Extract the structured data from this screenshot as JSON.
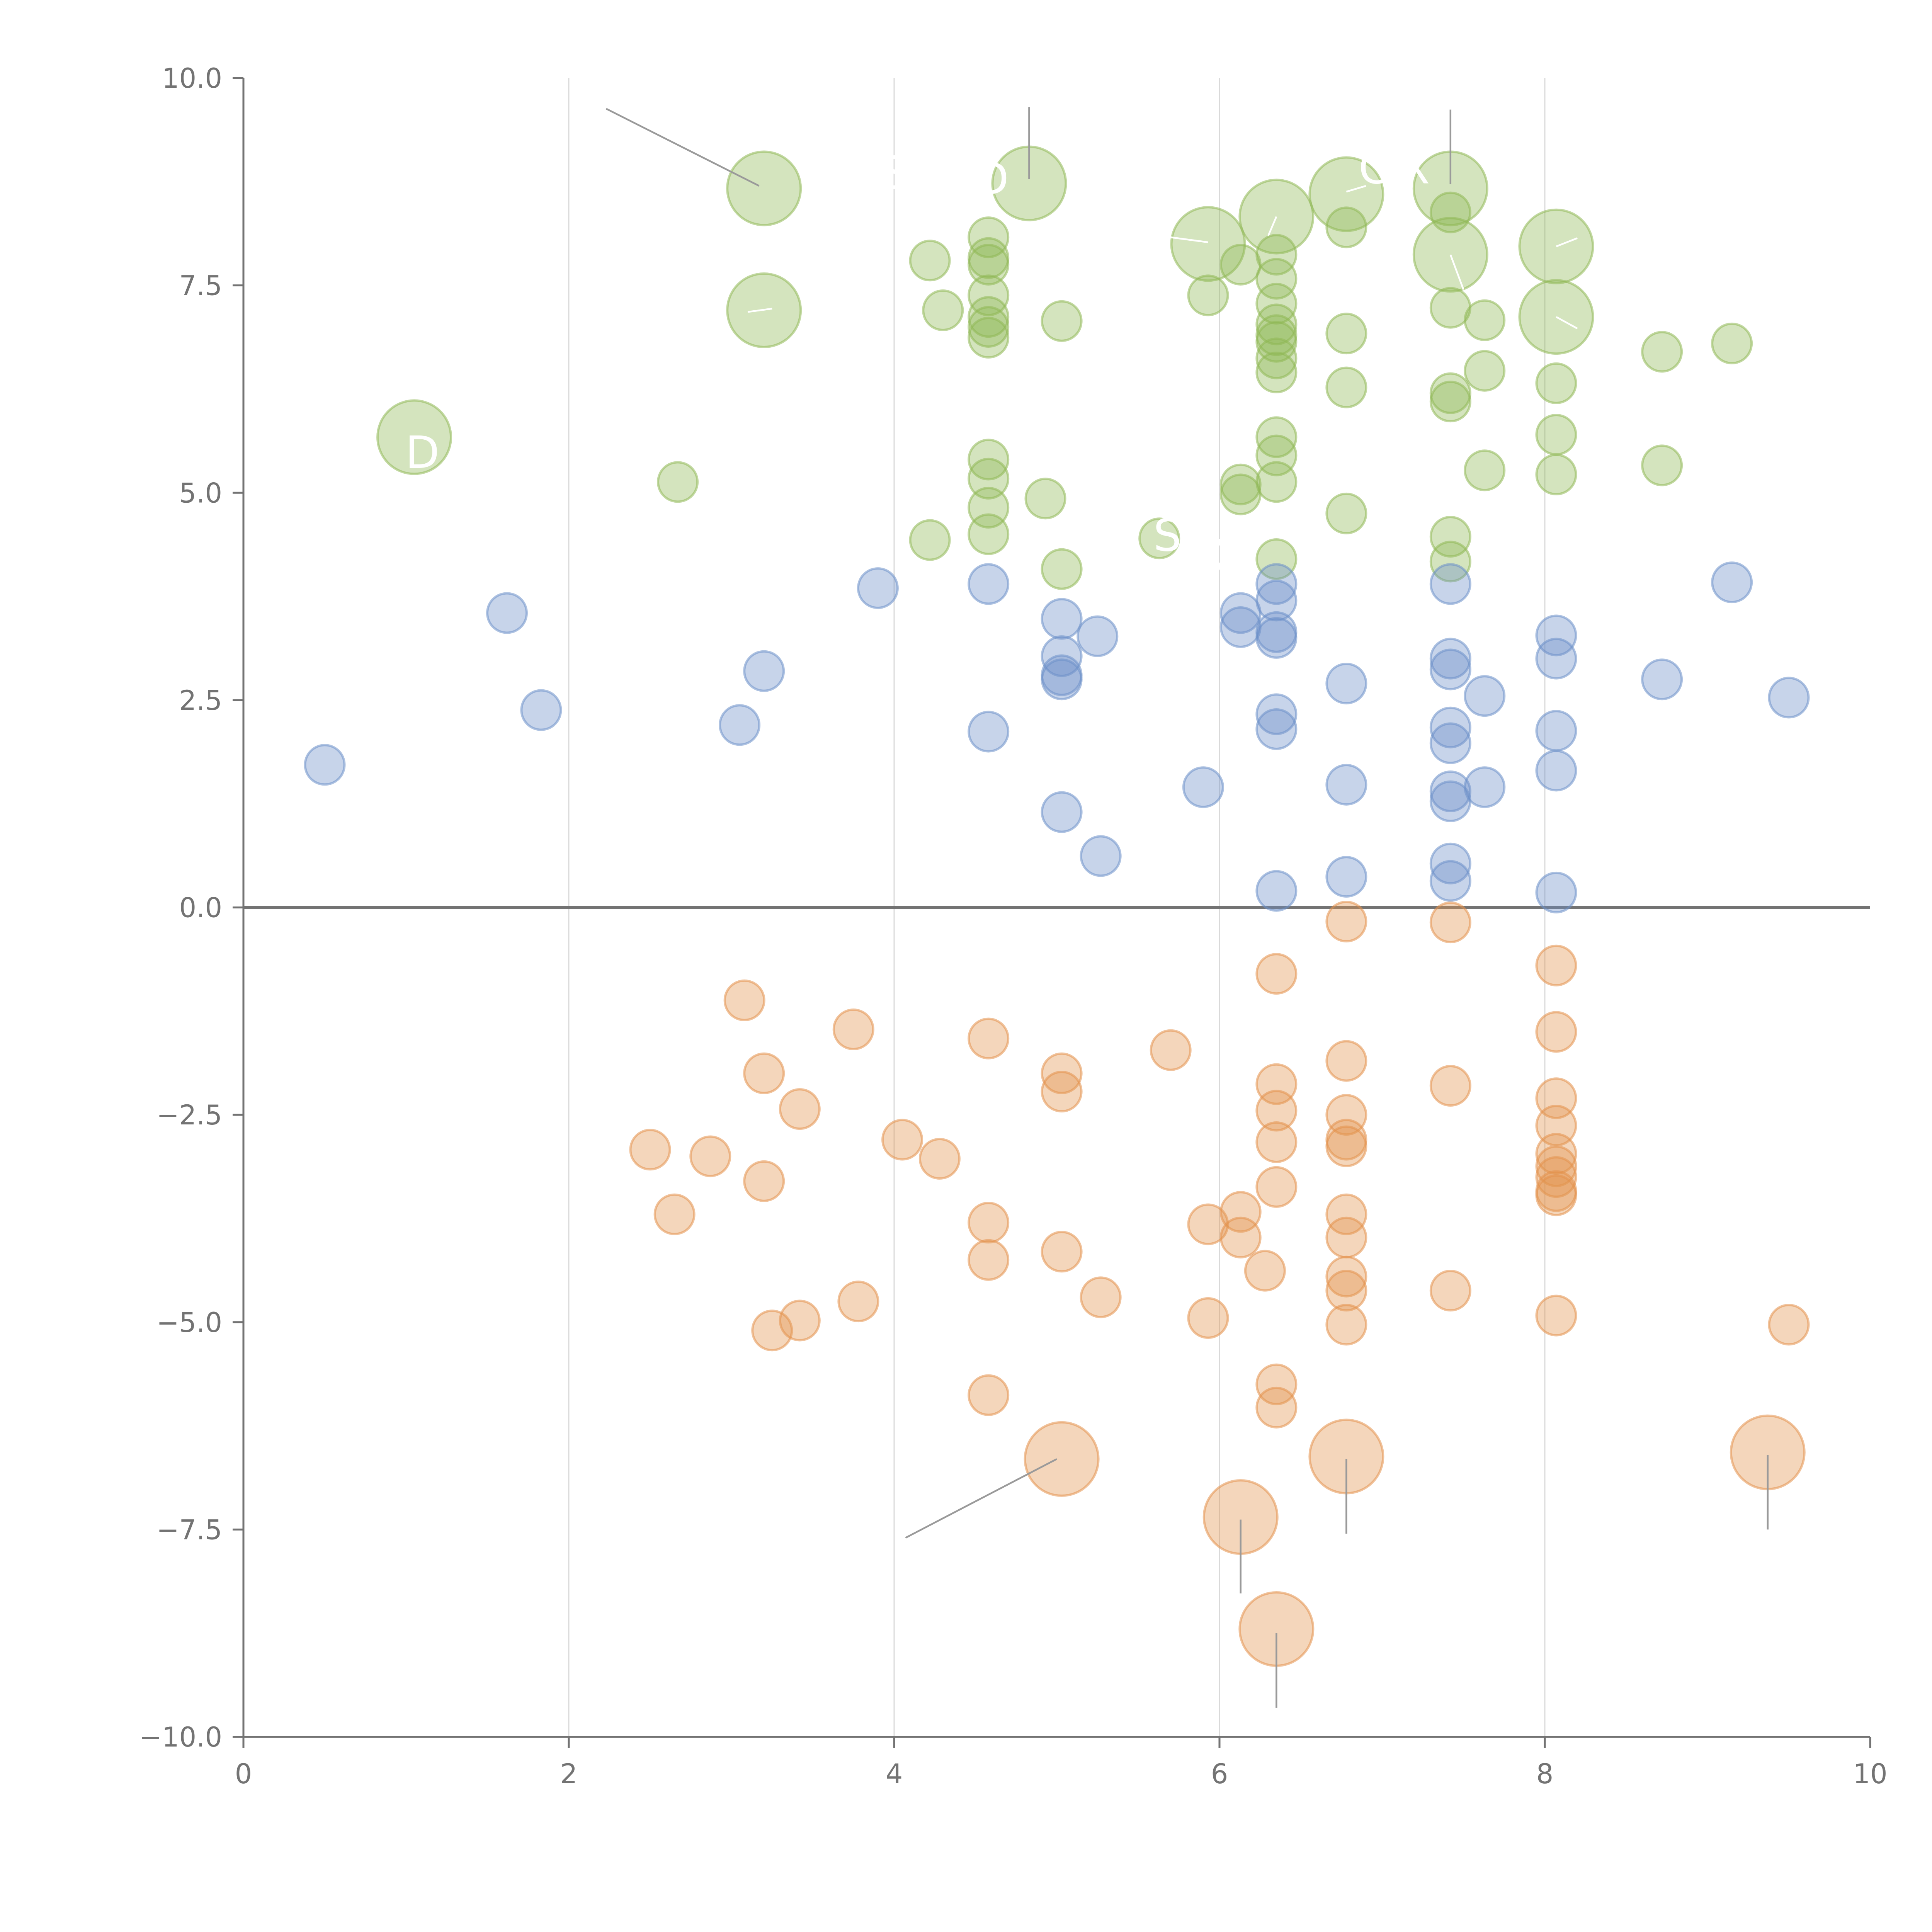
{
  "chart_data": {
    "type": "scatter",
    "title": "",
    "xlabel": "",
    "ylabel": "",
    "xlim": [
      0,
      10
    ],
    "ylim": [
      -10,
      10
    ],
    "grid": {
      "vertical": true,
      "horizontal": false
    },
    "zero_line": true,
    "x_ticks": [
      "0",
      "2",
      "4",
      "6",
      "8",
      "10"
    ],
    "y_ticks": [
      "10.0",
      "7.5",
      "5.0",
      "2.5",
      "0.0",
      "−2.5",
      "−5.0",
      "−7.5",
      "−10.0"
    ],
    "x_tick_values": [
      0,
      2,
      4,
      6,
      8,
      10
    ],
    "y_tick_values": [
      10,
      7.5,
      5,
      2.5,
      0,
      -2.5,
      -5,
      -7.5,
      -10
    ],
    "colors": {
      "green": "#8fb855",
      "blue": "#6b8fc9",
      "orange": "#e3924d"
    },
    "series": [
      {
        "color": "#8fb855",
        "points": [
          {
            "x": 1.05,
            "y": 5.67,
            "s": "large"
          },
          {
            "x": 3.2,
            "y": 8.67,
            "s": "large"
          },
          {
            "x": 3.2,
            "y": 7.2,
            "s": "large"
          },
          {
            "x": 4.83,
            "y": 8.73,
            "s": "large"
          },
          {
            "x": 5.93,
            "y": 8.0,
            "s": "large"
          },
          {
            "x": 6.35,
            "y": 8.33,
            "s": "large"
          },
          {
            "x": 6.78,
            "y": 8.6,
            "s": "large"
          },
          {
            "x": 7.42,
            "y": 8.67,
            "s": "large"
          },
          {
            "x": 7.42,
            "y": 7.87,
            "s": "large"
          },
          {
            "x": 8.07,
            "y": 7.97,
            "s": "large"
          },
          {
            "x": 8.07,
            "y": 7.12,
            "s": "large"
          },
          {
            "x": 2.67,
            "y": 5.13
          },
          {
            "x": 4.22,
            "y": 7.8
          },
          {
            "x": 4.3,
            "y": 7.2
          },
          {
            "x": 4.22,
            "y": 4.43
          },
          {
            "x": 4.58,
            "y": 8.08
          },
          {
            "x": 4.58,
            "y": 7.83
          },
          {
            "x": 4.58,
            "y": 7.75
          },
          {
            "x": 4.58,
            "y": 7.38
          },
          {
            "x": 4.58,
            "y": 7.12
          },
          {
            "x": 4.58,
            "y": 7.0
          },
          {
            "x": 4.58,
            "y": 6.87
          },
          {
            "x": 4.58,
            "y": 5.4
          },
          {
            "x": 4.58,
            "y": 5.17
          },
          {
            "x": 4.58,
            "y": 4.82
          },
          {
            "x": 4.58,
            "y": 4.5
          },
          {
            "x": 4.93,
            "y": 4.93
          },
          {
            "x": 5.03,
            "y": 7.07
          },
          {
            "x": 5.03,
            "y": 4.08
          },
          {
            "x": 5.63,
            "y": 4.45
          },
          {
            "x": 5.93,
            "y": 7.38
          },
          {
            "x": 6.13,
            "y": 7.75
          },
          {
            "x": 6.13,
            "y": 5.1
          },
          {
            "x": 6.13,
            "y": 4.98
          },
          {
            "x": 6.35,
            "y": 7.87
          },
          {
            "x": 6.35,
            "y": 7.58
          },
          {
            "x": 6.35,
            "y": 7.28
          },
          {
            "x": 6.35,
            "y": 7.03
          },
          {
            "x": 6.35,
            "y": 6.9
          },
          {
            "x": 6.35,
            "y": 6.82
          },
          {
            "x": 6.35,
            "y": 6.62
          },
          {
            "x": 6.35,
            "y": 6.45
          },
          {
            "x": 6.35,
            "y": 5.67
          },
          {
            "x": 6.35,
            "y": 5.45
          },
          {
            "x": 6.35,
            "y": 5.13
          },
          {
            "x": 6.35,
            "y": 4.2
          },
          {
            "x": 6.78,
            "y": 8.2
          },
          {
            "x": 6.78,
            "y": 6.92
          },
          {
            "x": 6.78,
            "y": 6.27
          },
          {
            "x": 6.78,
            "y": 4.75
          },
          {
            "x": 7.42,
            "y": 8.38
          },
          {
            "x": 7.42,
            "y": 7.23
          },
          {
            "x": 7.42,
            "y": 6.2
          },
          {
            "x": 7.42,
            "y": 6.1
          },
          {
            "x": 7.42,
            "y": 4.47
          },
          {
            "x": 7.42,
            "y": 4.17
          },
          {
            "x": 7.63,
            "y": 7.08
          },
          {
            "x": 7.63,
            "y": 6.47
          },
          {
            "x": 7.63,
            "y": 5.27
          },
          {
            "x": 8.07,
            "y": 6.32
          },
          {
            "x": 8.07,
            "y": 5.7
          },
          {
            "x": 8.07,
            "y": 5.22
          },
          {
            "x": 8.72,
            "y": 6.7
          },
          {
            "x": 8.72,
            "y": 5.33
          },
          {
            "x": 9.15,
            "y": 6.8
          }
        ]
      },
      {
        "color": "#6b8fc9",
        "points": [
          {
            "x": 0.5,
            "y": 1.72
          },
          {
            "x": 1.62,
            "y": 3.55
          },
          {
            "x": 1.83,
            "y": 2.38
          },
          {
            "x": 3.05,
            "y": 2.2
          },
          {
            "x": 3.2,
            "y": 2.85
          },
          {
            "x": 3.9,
            "y": 3.85
          },
          {
            "x": 4.58,
            "y": 3.9
          },
          {
            "x": 4.58,
            "y": 2.12
          },
          {
            "x": 5.03,
            "y": 3.48
          },
          {
            "x": 5.03,
            "y": 3.03
          },
          {
            "x": 5.03,
            "y": 2.8
          },
          {
            "x": 5.03,
            "y": 2.75
          },
          {
            "x": 5.03,
            "y": 1.15
          },
          {
            "x": 5.25,
            "y": 3.27
          },
          {
            "x": 5.27,
            "y": 0.62
          },
          {
            "x": 5.9,
            "y": 1.45
          },
          {
            "x": 6.13,
            "y": 3.55
          },
          {
            "x": 6.13,
            "y": 3.38
          },
          {
            "x": 6.35,
            "y": 3.9
          },
          {
            "x": 6.35,
            "y": 3.7
          },
          {
            "x": 6.35,
            "y": 3.32
          },
          {
            "x": 6.35,
            "y": 3.25
          },
          {
            "x": 6.35,
            "y": 2.33
          },
          {
            "x": 6.35,
            "y": 2.15
          },
          {
            "x": 6.35,
            "y": 0.2
          },
          {
            "x": 6.78,
            "y": 2.7
          },
          {
            "x": 6.78,
            "y": 1.48
          },
          {
            "x": 6.78,
            "y": 0.37
          },
          {
            "x": 7.42,
            "y": 3.9
          },
          {
            "x": 7.42,
            "y": 3.0
          },
          {
            "x": 7.42,
            "y": 2.87
          },
          {
            "x": 7.42,
            "y": 2.17
          },
          {
            "x": 7.42,
            "y": 1.98
          },
          {
            "x": 7.42,
            "y": 1.4
          },
          {
            "x": 7.42,
            "y": 1.28
          },
          {
            "x": 7.42,
            "y": 0.53
          },
          {
            "x": 7.42,
            "y": 0.32
          },
          {
            "x": 7.63,
            "y": 2.55
          },
          {
            "x": 7.63,
            "y": 1.45
          },
          {
            "x": 8.07,
            "y": 3.28
          },
          {
            "x": 8.07,
            "y": 3.0
          },
          {
            "x": 8.07,
            "y": 2.13
          },
          {
            "x": 8.07,
            "y": 1.65
          },
          {
            "x": 8.07,
            "y": 0.18
          },
          {
            "x": 8.72,
            "y": 2.75
          },
          {
            "x": 9.15,
            "y": 3.92
          },
          {
            "x": 9.5,
            "y": 2.53
          }
        ]
      },
      {
        "color": "#e3924d",
        "points": [
          {
            "x": 5.03,
            "y": -6.65,
            "s": "large"
          },
          {
            "x": 6.13,
            "y": -7.35,
            "s": "large"
          },
          {
            "x": 6.35,
            "y": -8.7,
            "s": "large"
          },
          {
            "x": 6.78,
            "y": -6.62,
            "s": "large"
          },
          {
            "x": 9.37,
            "y": -6.57,
            "s": "large"
          },
          {
            "x": 2.5,
            "y": -2.92
          },
          {
            "x": 2.65,
            "y": -3.7
          },
          {
            "x": 2.87,
            "y": -3.0
          },
          {
            "x": 3.08,
            "y": -1.12
          },
          {
            "x": 3.2,
            "y": -2.0
          },
          {
            "x": 3.2,
            "y": -3.3
          },
          {
            "x": 3.25,
            "y": -5.1
          },
          {
            "x": 3.42,
            "y": -2.43
          },
          {
            "x": 3.42,
            "y": -4.98
          },
          {
            "x": 3.75,
            "y": -1.47
          },
          {
            "x": 3.78,
            "y": -4.75
          },
          {
            "x": 4.05,
            "y": -2.8
          },
          {
            "x": 4.28,
            "y": -3.03
          },
          {
            "x": 4.58,
            "y": -1.58
          },
          {
            "x": 4.58,
            "y": -3.8
          },
          {
            "x": 4.58,
            "y": -4.25
          },
          {
            "x": 4.58,
            "y": -5.88
          },
          {
            "x": 5.03,
            "y": -2.0
          },
          {
            "x": 5.03,
            "y": -2.22
          },
          {
            "x": 5.03,
            "y": -4.15
          },
          {
            "x": 5.27,
            "y": -4.7
          },
          {
            "x": 5.7,
            "y": -1.72
          },
          {
            "x": 5.93,
            "y": -3.82
          },
          {
            "x": 5.93,
            "y": -4.95
          },
          {
            "x": 6.13,
            "y": -3.67
          },
          {
            "x": 6.13,
            "y": -3.98
          },
          {
            "x": 6.28,
            "y": -4.38
          },
          {
            "x": 6.35,
            "y": -0.8
          },
          {
            "x": 6.35,
            "y": -2.13
          },
          {
            "x": 6.35,
            "y": -2.45
          },
          {
            "x": 6.35,
            "y": -2.83
          },
          {
            "x": 6.35,
            "y": -3.37
          },
          {
            "x": 6.35,
            "y": -5.75
          },
          {
            "x": 6.35,
            "y": -6.03
          },
          {
            "x": 6.78,
            "y": -0.17
          },
          {
            "x": 6.78,
            "y": -1.85
          },
          {
            "x": 6.78,
            "y": -2.5
          },
          {
            "x": 6.78,
            "y": -2.8
          },
          {
            "x": 6.78,
            "y": -2.88
          },
          {
            "x": 6.78,
            "y": -3.7
          },
          {
            "x": 6.78,
            "y": -3.98
          },
          {
            "x": 6.78,
            "y": -4.45
          },
          {
            "x": 6.78,
            "y": -4.62
          },
          {
            "x": 6.78,
            "y": -5.03
          },
          {
            "x": 7.42,
            "y": -0.18
          },
          {
            "x": 7.42,
            "y": -2.15
          },
          {
            "x": 7.42,
            "y": -4.62
          },
          {
            "x": 8.07,
            "y": -0.7
          },
          {
            "x": 8.07,
            "y": -1.5
          },
          {
            "x": 8.07,
            "y": -2.3
          },
          {
            "x": 8.07,
            "y": -2.63
          },
          {
            "x": 8.07,
            "y": -2.97
          },
          {
            "x": 8.07,
            "y": -3.12
          },
          {
            "x": 8.07,
            "y": -3.25
          },
          {
            "x": 8.07,
            "y": -3.42
          },
          {
            "x": 8.07,
            "y": -3.47
          },
          {
            "x": 8.07,
            "y": -4.92
          },
          {
            "x": 9.5,
            "y": -5.03
          }
        ]
      }
    ],
    "leaders": [
      {
        "x1": 2.23,
        "y1": 9.63,
        "x2": 3.17,
        "y2": 8.7,
        "c": "gray"
      },
      {
        "x1": 4.83,
        "y1": 9.65,
        "x2": 4.83,
        "y2": 8.78,
        "c": "gray"
      },
      {
        "x1": 7.42,
        "y1": 9.62,
        "x2": 7.42,
        "y2": 8.72,
        "c": "gray"
      },
      {
        "x1": 4.07,
        "y1": -7.6,
        "x2": 5.0,
        "y2": -6.65,
        "c": "gray"
      },
      {
        "x1": 6.13,
        "y1": -7.38,
        "x2": 6.13,
        "y2": -8.27,
        "c": "gray"
      },
      {
        "x1": 6.35,
        "y1": -8.75,
        "x2": 6.35,
        "y2": -9.65,
        "c": "gray"
      },
      {
        "x1": 6.78,
        "y1": -6.65,
        "x2": 6.78,
        "y2": -7.55,
        "c": "gray"
      },
      {
        "x1": 9.37,
        "y1": -6.6,
        "x2": 9.37,
        "y2": -7.5,
        "c": "gray"
      },
      {
        "x1": 3.25,
        "y1": 7.22,
        "x2": 3.1,
        "y2": 7.18,
        "c": "white"
      },
      {
        "x1": 5.93,
        "y1": 8.02,
        "x2": 5.7,
        "y2": 8.08,
        "c": "white"
      },
      {
        "x1": 6.35,
        "y1": 8.33,
        "x2": 6.3,
        "y2": 8.1,
        "c": "white"
      },
      {
        "x1": 6.78,
        "y1": 8.63,
        "x2": 6.9,
        "y2": 8.7,
        "c": "white"
      },
      {
        "x1": 7.42,
        "y1": 7.87,
        "x2": 7.5,
        "y2": 7.45,
        "c": "white"
      },
      {
        "x1": 8.07,
        "y1": 7.97,
        "x2": 8.2,
        "y2": 8.07,
        "c": "white"
      },
      {
        "x1": 8.07,
        "y1": 7.12,
        "x2": 8.2,
        "y2": 6.98,
        "c": "white"
      }
    ],
    "annotations": [
      {
        "text": "D",
        "x": 1.1,
        "y": 5.3
      },
      {
        "text": "S",
        "x": 4.0,
        "y": 8.67
      },
      {
        "text": "D",
        "x": 4.6,
        "y": 8.6
      },
      {
        "text": "C",
        "x": 6.95,
        "y": 8.73
      },
      {
        "text": "X",
        "x": 7.2,
        "y": 8.73
      },
      {
        "text": "S",
        "x": 5.68,
        "y": 4.3
      },
      {
        "text": "X",
        "x": 6.05,
        "y": 4.05
      }
    ]
  }
}
